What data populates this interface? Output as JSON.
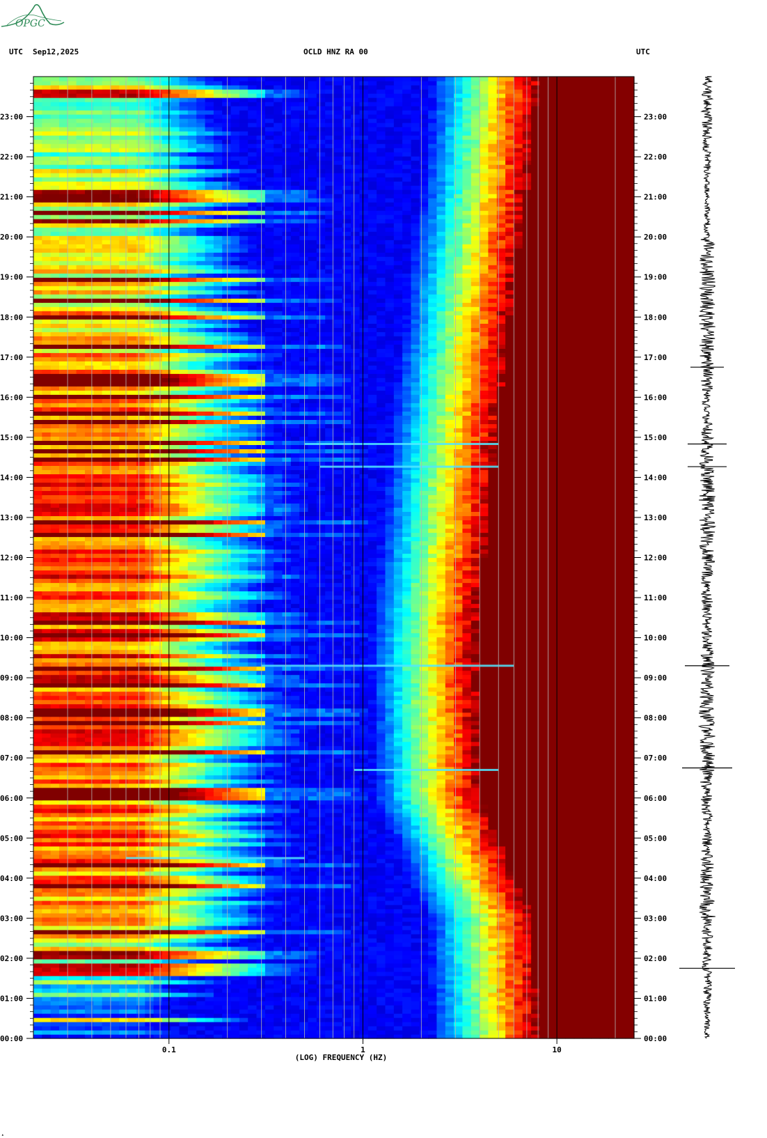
{
  "header": {
    "left_tz": "UTC",
    "date": "Sep12,2025",
    "station": "OCLD HNZ RA 00",
    "right_tz": "UTC"
  },
  "logo": {
    "text": "OPGC",
    "color": "#2e8b57"
  },
  "colors": {
    "background_low": "#0018d6",
    "mid": "#00c8ff",
    "high": "#ffe000",
    "saturated": "#8b0000",
    "gridline": "#b4b4b4"
  },
  "chart_data": {
    "type": "heatmap",
    "title": "OCLD HNZ RA 00",
    "xlabel": "(LOG) FREQUENCY (HZ)",
    "ylabel": "",
    "x_scale": "log",
    "xlim": [
      0.02,
      25
    ],
    "ylim": [
      "00:00",
      "24:00"
    ],
    "x_tick_labels": [
      "0.1",
      "1",
      "10"
    ],
    "x_ticks": [
      0.1,
      1,
      10
    ],
    "x_minor_gridlines": [
      0.03,
      0.04,
      0.05,
      0.06,
      0.07,
      0.08,
      0.09,
      0.2,
      0.3,
      0.4,
      0.5,
      0.6,
      0.7,
      0.8,
      0.9,
      2,
      3,
      4,
      5,
      6,
      7,
      8,
      9,
      20
    ],
    "y_tick_labels": [
      "00:00",
      "01:00",
      "02:00",
      "03:00",
      "04:00",
      "05:00",
      "06:00",
      "07:00",
      "08:00",
      "09:00",
      "10:00",
      "11:00",
      "12:00",
      "13:00",
      "14:00",
      "15:00",
      "16:00",
      "17:00",
      "18:00",
      "19:00",
      "20:00",
      "21:00",
      "22:00",
      "23:00"
    ],
    "colormap": "jet",
    "description_rows": [
      {
        "hour": 0,
        "low_freq_level": 0.15
      },
      {
        "hour": 2.8,
        "low_freq_level": 0.75
      },
      {
        "hour": 12,
        "low_freq_level": 0.85
      },
      {
        "hour": 23,
        "low_freq_level": 0.55
      }
    ],
    "saturation_edge_hz": [
      {
        "hour": 0,
        "hz": 8.0
      },
      {
        "hour": 3,
        "hz": 7.5
      },
      {
        "hour": 4,
        "hz": 6.0
      },
      {
        "hour": 6,
        "hz": 4.0
      },
      {
        "hour": 10,
        "hz": 3.8
      },
      {
        "hour": 15,
        "hz": 4.8
      },
      {
        "hour": 19,
        "hz": 6.0
      },
      {
        "hour": 21,
        "hz": 7.0
      },
      {
        "hour": 24,
        "hz": 8.0
      }
    ],
    "events": [
      {
        "time": "09:18",
        "fmin_hz": 0.3,
        "fmax_hz": 6
      },
      {
        "time": "14:50",
        "fmin_hz": 0.5,
        "fmax_hz": 5
      },
      {
        "time": "14:16",
        "fmin_hz": 0.6,
        "fmax_hz": 5
      },
      {
        "time": "06:42",
        "fmin_hz": 0.9,
        "fmax_hz": 5
      },
      {
        "time": "04:30",
        "fmin_hz": 0.06,
        "fmax_hz": 0.5
      }
    ],
    "seismogram": {
      "spikes": [
        {
          "time": "01:45",
          "amplitude": 1.0
        },
        {
          "time": "06:45",
          "amplitude": 0.9
        },
        {
          "time": "09:18",
          "amplitude": 0.8
        },
        {
          "time": "14:16",
          "amplitude": 0.7
        },
        {
          "time": "14:50",
          "amplitude": 0.7
        },
        {
          "time": "16:45",
          "amplitude": 0.6
        }
      ]
    }
  }
}
